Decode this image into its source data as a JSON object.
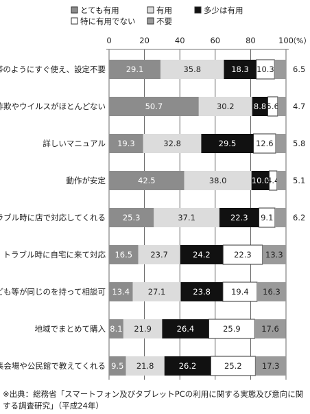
{
  "chart_data": {
    "type": "bar",
    "orientation": "horizontal",
    "stacked": true,
    "xlim": [
      0,
      100
    ],
    "x_ticks": [
      "0",
      "20",
      "40",
      "60",
      "80",
      "100"
    ],
    "unit_label": "（%）",
    "legend_position": "top",
    "categories": [
      "携帯のようにすぐ使え、設定不要",
      "詐欺やウイルスがほとんどない",
      "詳しいマニュアル",
      "動作が安定",
      "トラブル時に店で対応してくれる",
      "トラブル時に自宅に来て対応",
      "子ども等が同じのを持って相談可",
      "地域でまとめて購入",
      "集会場や公民館で教えてくれる"
    ],
    "series": [
      {
        "name": "とても有用",
        "color": "#8c8c8c",
        "text_color": "#ffffff",
        "values": [
          29.1,
          50.7,
          19.3,
          42.5,
          25.3,
          16.5,
          13.4,
          8.1,
          9.5
        ]
      },
      {
        "name": "有用",
        "color": "#dcdcdc",
        "text_color": "#222222",
        "values": [
          35.8,
          30.2,
          32.8,
          38.0,
          37.1,
          23.7,
          27.1,
          21.9,
          21.8
        ]
      },
      {
        "name": "多少は有用",
        "color": "#111111",
        "text_color": "#ffffff",
        "values": [
          18.3,
          8.8,
          29.5,
          10.0,
          22.3,
          24.2,
          23.8,
          26.4,
          26.2
        ]
      },
      {
        "name": "特に有用でない",
        "color": "#ffffff",
        "text_color": "#222222",
        "values": [
          10.3,
          5.6,
          12.6,
          4.4,
          9.1,
          22.3,
          19.4,
          25.9,
          25.2
        ]
      },
      {
        "name": "不要",
        "color": "#9a9a9a",
        "text_color": "#222222",
        "values": [
          6.5,
          4.7,
          5.8,
          5.1,
          6.2,
          13.3,
          16.3,
          17.6,
          17.3
        ]
      }
    ],
    "value_labels": [
      [
        "29.1",
        "35.8",
        "18.3",
        "10.3",
        "6.5"
      ],
      [
        "50.7",
        "30.2",
        "8.8",
        "5.6",
        "4.7"
      ],
      [
        "19.3",
        "32.8",
        "29.5",
        "12.6",
        "5.8"
      ],
      [
        "42.5",
        "38.0",
        "10.0",
        "4.4",
        "5.1"
      ],
      [
        "25.3",
        "37.1",
        "22.3",
        "9.1",
        "6.2"
      ],
      [
        "16.5",
        "23.7",
        "24.2",
        "22.3",
        "13.3"
      ],
      [
        "13.4",
        "27.1",
        "23.8",
        "19.4",
        "16.3"
      ],
      [
        "8.1",
        "21.9",
        "26.4",
        "25.9",
        "17.6"
      ],
      [
        "9.5",
        "21.8",
        "26.2",
        "25.2",
        "17.3"
      ]
    ],
    "outside_label_series": [
      4,
      4,
      4,
      4,
      4,
      99,
      99,
      99,
      99
    ]
  },
  "source_note": "※出典：総務省「スマートフォン及びタブレットPCの利用に関する実態及び意向に関する調査研究」（平成24年）"
}
